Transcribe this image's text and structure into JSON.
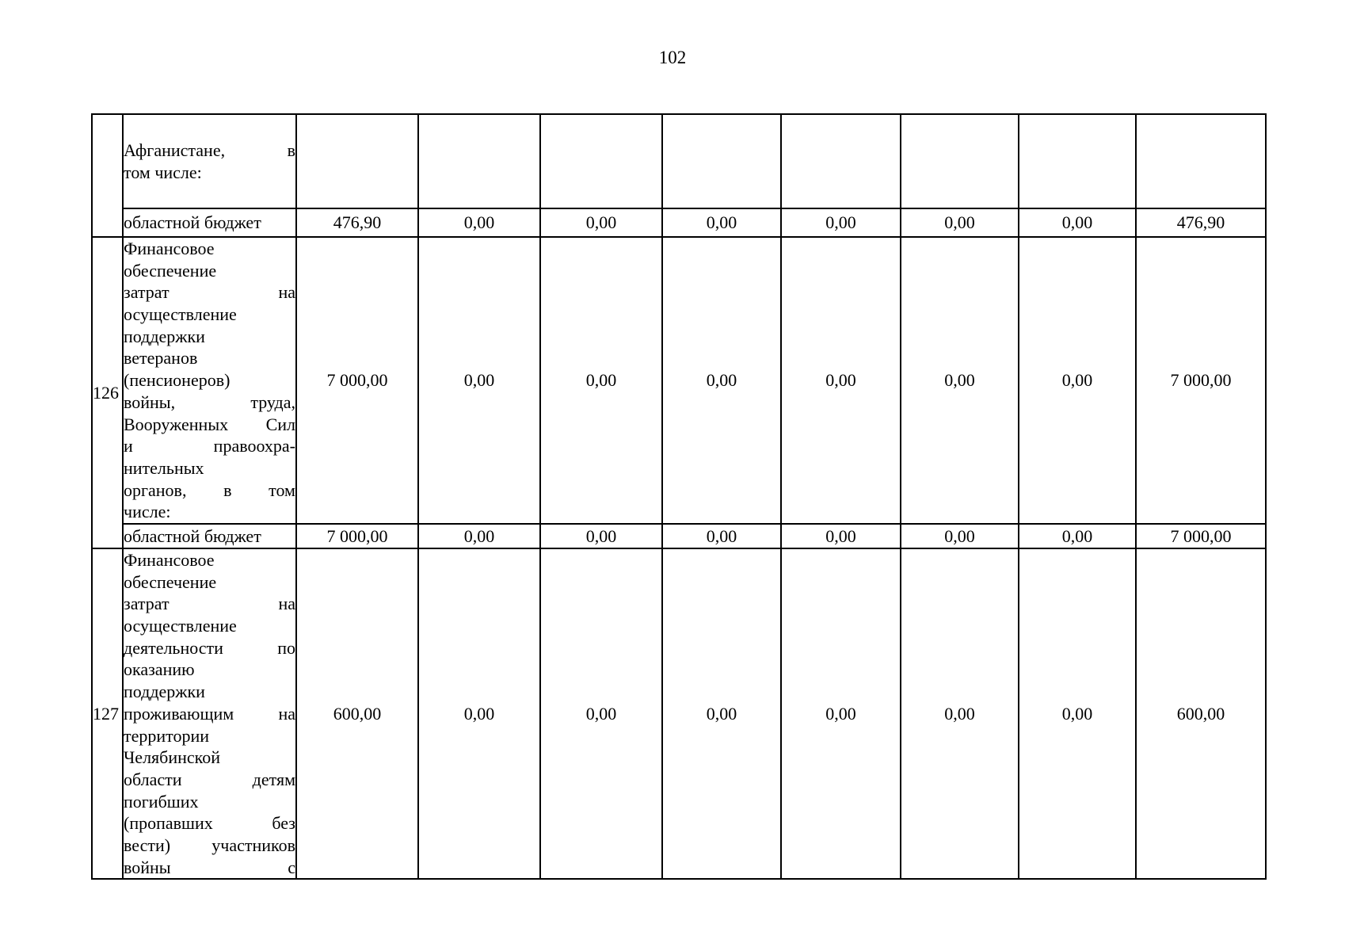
{
  "page": {
    "number": "102"
  },
  "table": {
    "rows": [
      {
        "kind": "continuation",
        "num": "",
        "desc_lines": [
          [
            "Афганистане,",
            "в"
          ],
          [
            "том числе:"
          ]
        ],
        "values": [
          "",
          "",
          "",
          "",
          "",
          "",
          "",
          ""
        ]
      },
      {
        "kind": "budget",
        "label": "областной бюджет",
        "values": [
          "476,90",
          "0,00",
          "0,00",
          "0,00",
          "0,00",
          "0,00",
          "0,00",
          "476,90"
        ]
      },
      {
        "kind": "main",
        "num": "126",
        "desc_lines": [
          [
            "Финансовое"
          ],
          [
            "обеспечение"
          ],
          [
            "затрат",
            "на"
          ],
          [
            "осуществление"
          ],
          [
            "поддержки"
          ],
          [
            "ветеранов"
          ],
          [
            "(пенсионеров)"
          ],
          [
            "войны,",
            "труда,"
          ],
          [
            "Вооруженных",
            "Сил"
          ],
          [
            "и",
            "правоохра-"
          ],
          [
            "нительных"
          ],
          [
            "органов,",
            "в",
            "том"
          ],
          [
            "числе:"
          ]
        ],
        "values": [
          "7 000,00",
          "0,00",
          "0,00",
          "0,00",
          "0,00",
          "0,00",
          "0,00",
          "7 000,00"
        ]
      },
      {
        "kind": "budget",
        "label": "областной бюджет",
        "values": [
          "7 000,00",
          "0,00",
          "0,00",
          "0,00",
          "0,00",
          "0,00",
          "0,00",
          "7 000,00"
        ]
      },
      {
        "kind": "main",
        "num": "127",
        "desc_lines": [
          [
            "Финансовое"
          ],
          [
            "обеспечение"
          ],
          [
            "затрат",
            "на"
          ],
          [
            "осуществление"
          ],
          [
            "деятельности",
            "по"
          ],
          [
            "оказанию"
          ],
          [
            "поддержки"
          ],
          [
            "проживающим",
            "на"
          ],
          [
            "территории"
          ],
          [
            "Челябинской"
          ],
          [
            "области",
            "детям"
          ],
          [
            "погибших"
          ],
          [
            "(пропавших",
            "без"
          ],
          [
            "вести)",
            "участников"
          ],
          [
            "войны",
            "с"
          ]
        ],
        "values": [
          "600,00",
          "0,00",
          "0,00",
          "0,00",
          "0,00",
          "0,00",
          "0,00",
          "600,00"
        ]
      }
    ]
  }
}
